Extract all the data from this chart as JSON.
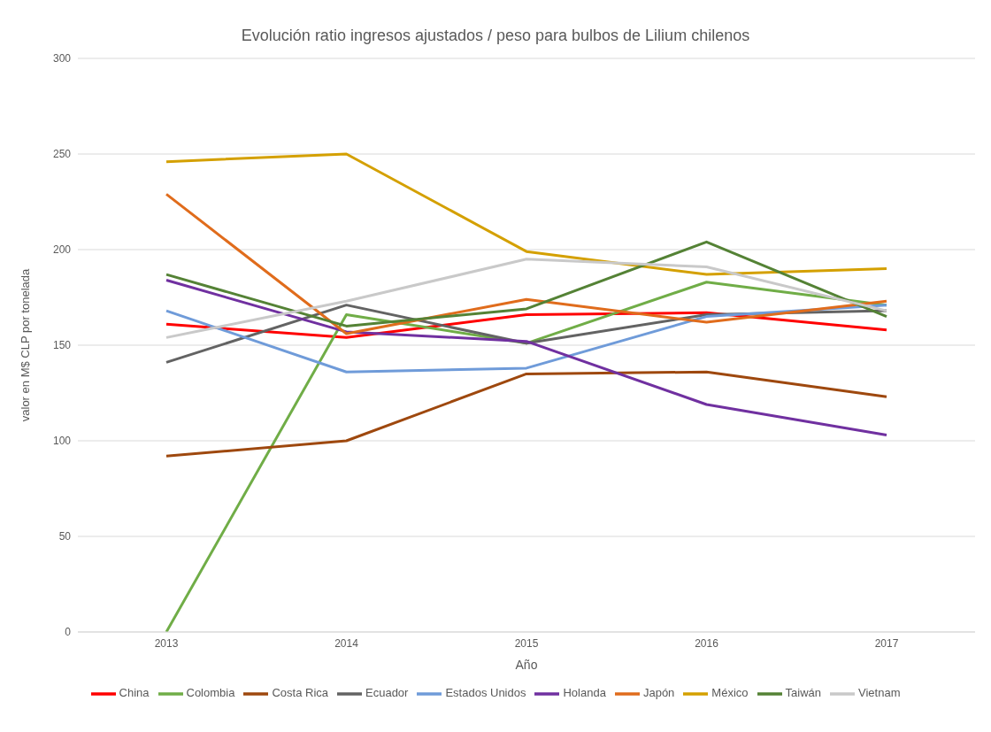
{
  "chart_data": {
    "type": "line",
    "title": "Evolución ratio ingresos ajustados / peso para bulbos de Lilium chilenos",
    "xlabel": "Año",
    "ylabel": "valor en M$ CLP por tonelada",
    "categories": [
      "2013",
      "2014",
      "2015",
      "2016",
      "2017"
    ],
    "ylim": [
      0,
      300
    ],
    "yticks": [
      0,
      50,
      100,
      150,
      200,
      250,
      300
    ],
    "grid": "y",
    "legend": "bottom",
    "marker": "none",
    "series": [
      {
        "name": "China",
        "color": "#ff0000",
        "values": [
          161,
          154,
          166,
          167,
          158
        ]
      },
      {
        "name": "Colombia",
        "color": "#70ad47",
        "values": [
          0,
          166,
          151,
          183,
          171
        ]
      },
      {
        "name": "Costa Rica",
        "color": "#9e480e",
        "values": [
          92,
          100,
          135,
          136,
          123
        ]
      },
      {
        "name": "Ecuador",
        "color": "#636363",
        "values": [
          141,
          171,
          151,
          166,
          168
        ]
      },
      {
        "name": "Estados Unidos",
        "color": "#6f9bd9",
        "values": [
          168,
          136,
          138,
          165,
          171
        ]
      },
      {
        "name": "Holanda",
        "color": "#7030a0",
        "values": [
          184,
          157,
          152,
          119,
          103
        ]
      },
      {
        "name": "Japón",
        "color": "#e06c1c",
        "values": [
          229,
          156,
          174,
          162,
          173
        ]
      },
      {
        "name": "México",
        "color": "#d4a000",
        "values": [
          246,
          250,
          199,
          187,
          190
        ]
      },
      {
        "name": "Taiwán",
        "color": "#548235",
        "values": [
          187,
          160,
          169,
          204,
          165
        ]
      },
      {
        "name": "Vietnam",
        "color": "#c9c9c9",
        "values": [
          154,
          173,
          195,
          191,
          168
        ]
      }
    ]
  }
}
